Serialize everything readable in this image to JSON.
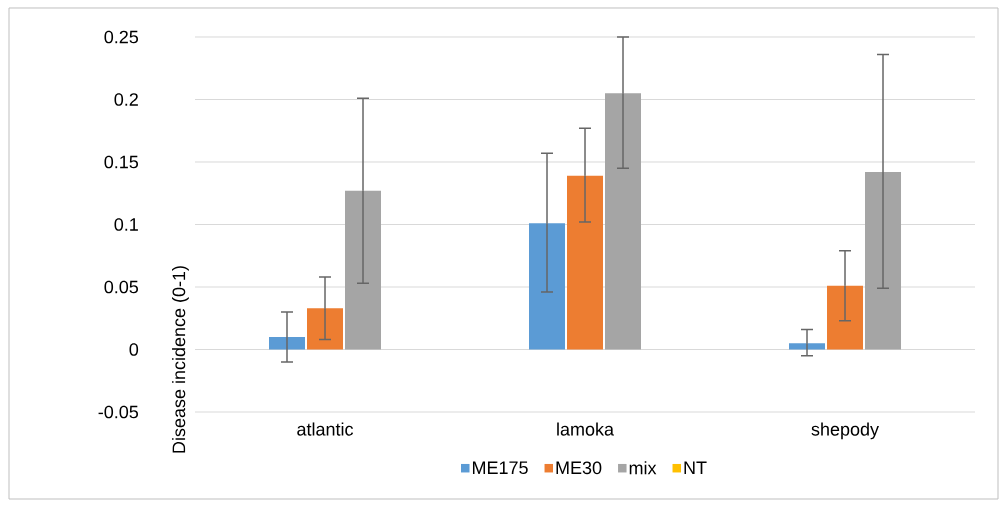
{
  "chart_data": {
    "type": "bar",
    "ylabel": "Disease incidence (0-1)",
    "categories": [
      "atlantic",
      "lamoka",
      "shepody"
    ],
    "series": [
      {
        "name": "ME175",
        "color": "#5b9bd5",
        "values": [
          0.01,
          0.101,
          0.005
        ],
        "errors": [
          [
            -0.01,
            0.03
          ],
          [
            0.046,
            0.157
          ],
          [
            -0.005,
            0.016
          ]
        ]
      },
      {
        "name": "ME30",
        "color": "#ed7d31",
        "values": [
          0.033,
          0.139,
          0.051
        ],
        "errors": [
          [
            0.008,
            0.058
          ],
          [
            0.102,
            0.177
          ],
          [
            0.023,
            0.079
          ]
        ]
      },
      {
        "name": "mix",
        "color": "#a5a5a5",
        "values": [
          0.127,
          0.205,
          0.142
        ],
        "errors": [
          [
            0.053,
            0.201
          ],
          [
            0.145,
            0.25
          ],
          [
            0.049,
            0.236
          ]
        ]
      },
      {
        "name": "NT",
        "color": "#ffc000",
        "values": [
          null,
          null,
          null
        ]
      }
    ],
    "ylim": [
      -0.05,
      0.25
    ],
    "yticks": [
      -0.05,
      0,
      0.05,
      0.1,
      0.15,
      0.2,
      0.25
    ],
    "grid": "y",
    "legend": "bottom"
  }
}
